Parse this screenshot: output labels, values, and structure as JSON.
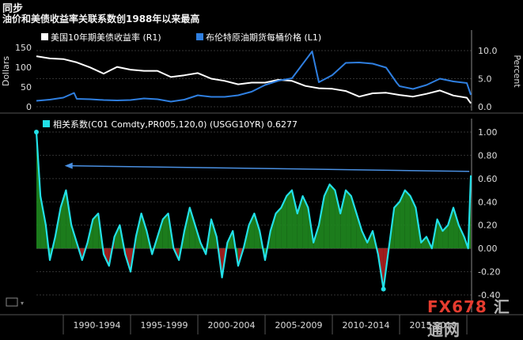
{
  "header": {
    "title": "同步",
    "subtitle": "油价和美债收益率关联系数创1988年以来最高"
  },
  "watermark": {
    "text_a": "FX678",
    "text_b": "汇通网"
  },
  "chart_data": [
    {
      "type": "line",
      "legend": [
        "美国10年期美债收益率 (R1)",
        "布伦特原油期货每桶价格 (L1)"
      ],
      "ylabel_left": "Dollars",
      "ylabel_right": "Percent",
      "left_ticks": [
        "150",
        "100",
        "50",
        "0"
      ],
      "right_ticks": [
        "10.0",
        "5.0",
        "0.0"
      ],
      "left_ylim": [
        0,
        150
      ],
      "right_ylim": [
        0,
        12
      ],
      "series": [
        {
          "name": "美国10年期美债收益率 (R1)",
          "axis": "right",
          "color": "#ffffff",
          "x": [
            1988,
            1989,
            1990,
            1991,
            1992,
            1993,
            1994,
            1995,
            1996,
            1997,
            1998,
            1999,
            2000,
            2001,
            2002,
            2003,
            2004,
            2005,
            2006,
            2007,
            2008,
            2009,
            2010,
            2011,
            2012,
            2013,
            2014,
            2015,
            2016,
            2017,
            2018,
            2019,
            2020,
            2020.3
          ],
          "values": [
            9.0,
            8.6,
            8.5,
            7.9,
            7.0,
            5.9,
            7.1,
            6.6,
            6.4,
            6.4,
            5.3,
            5.6,
            6.0,
            5.0,
            4.6,
            4.0,
            4.3,
            4.3,
            4.8,
            4.6,
            3.7,
            3.3,
            3.2,
            2.8,
            1.8,
            2.4,
            2.5,
            2.1,
            1.8,
            2.3,
            2.9,
            2.0,
            1.6,
            0.6
          ]
        },
        {
          "name": "布伦特原油期货每桶价格 (L1)",
          "axis": "left",
          "color": "#2f7fe0",
          "x": [
            1988,
            1989,
            1990,
            1990.8,
            1991,
            1992,
            1993,
            1994,
            1995,
            1996,
            1997,
            1998,
            1999,
            2000,
            2001,
            2002,
            2003,
            2004,
            2005,
            2006,
            2007,
            2008.5,
            2009,
            2010,
            2011,
            2012,
            2013,
            2014,
            2014.8,
            2015,
            2016,
            2017,
            2018,
            2019,
            2020,
            2020.3
          ],
          "values": [
            15,
            18,
            23,
            35,
            20,
            19,
            17,
            16,
            17,
            21,
            19,
            13,
            18,
            29,
            25,
            25,
            29,
            38,
            55,
            66,
            72,
            140,
            62,
            80,
            111,
            112,
            109,
            99,
            60,
            52,
            45,
            55,
            71,
            64,
            60,
            30
          ]
        }
      ]
    },
    {
      "type": "area",
      "legend": [
        "相关系数(C01 Comdty,PR005,120,0) (USGG10YR) 0.6277"
      ],
      "ylim": [
        -0.4,
        1.0
      ],
      "y_ticks": [
        "1.00",
        "0.80",
        "0.60",
        "0.40",
        "0.20",
        "0.00",
        "-0.20",
        "-0.40"
      ],
      "x_ticks": [
        "1990-1994",
        "1995-1999",
        "2000-2004",
        "2005-2009",
        "2010-2014",
        "2015-2019"
      ],
      "current_value": 0.6277,
      "series": [
        {
          "name": "相关系数(C01 Comdty,PR005,120,0) (USGG10YR) 0.6277",
          "color": "#22e0e8",
          "fill_positive": "#1f8a1f",
          "fill_negative": "#b02020",
          "x": [
            1988.0,
            1988.3,
            1988.7,
            1989.0,
            1989.4,
            1989.8,
            1990.2,
            1990.6,
            1991.0,
            1991.4,
            1991.8,
            1992.2,
            1992.6,
            1993.0,
            1993.4,
            1993.8,
            1994.2,
            1994.6,
            1995.0,
            1995.4,
            1995.8,
            1996.2,
            1996.6,
            1997.0,
            1997.4,
            1997.8,
            1998.2,
            1998.6,
            1999.0,
            1999.4,
            1999.8,
            2000.2,
            2000.6,
            2001.0,
            2001.4,
            2001.8,
            2002.2,
            2002.6,
            2003.0,
            2003.4,
            2003.8,
            2004.2,
            2004.6,
            2005.0,
            2005.4,
            2005.8,
            2006.2,
            2006.6,
            2007.0,
            2007.4,
            2007.8,
            2008.2,
            2008.6,
            2009.0,
            2009.4,
            2009.8,
            2010.2,
            2010.6,
            2011.0,
            2011.4,
            2011.8,
            2012.2,
            2012.6,
            2013.0,
            2013.4,
            2013.8,
            2014.2,
            2014.6,
            2015.0,
            2015.4,
            2015.8,
            2016.2,
            2016.6,
            2017.0,
            2017.4,
            2017.8,
            2018.2,
            2018.6,
            2019.0,
            2019.4,
            2019.8,
            2020.1,
            2020.3
          ],
          "values": [
            1.0,
            0.45,
            0.2,
            -0.1,
            0.1,
            0.35,
            0.5,
            0.2,
            0.05,
            -0.1,
            0.05,
            0.25,
            0.3,
            -0.05,
            -0.15,
            0.1,
            0.2,
            -0.05,
            -0.2,
            0.1,
            0.3,
            0.15,
            -0.05,
            0.1,
            0.25,
            0.3,
            0.0,
            -0.1,
            0.15,
            0.35,
            0.2,
            0.05,
            -0.05,
            0.25,
            0.1,
            -0.25,
            0.05,
            0.15,
            -0.15,
            0.0,
            0.2,
            0.3,
            0.15,
            -0.1,
            0.15,
            0.3,
            0.35,
            0.45,
            0.5,
            0.3,
            0.45,
            0.35,
            0.05,
            0.2,
            0.45,
            0.55,
            0.5,
            0.3,
            0.5,
            0.45,
            0.3,
            0.15,
            0.05,
            0.15,
            -0.05,
            -0.35,
            0.0,
            0.35,
            0.4,
            0.5,
            0.45,
            0.35,
            0.05,
            0.1,
            0.0,
            0.25,
            0.15,
            0.2,
            0.35,
            0.2,
            0.1,
            0.0,
            0.6277
          ]
        }
      ]
    }
  ]
}
